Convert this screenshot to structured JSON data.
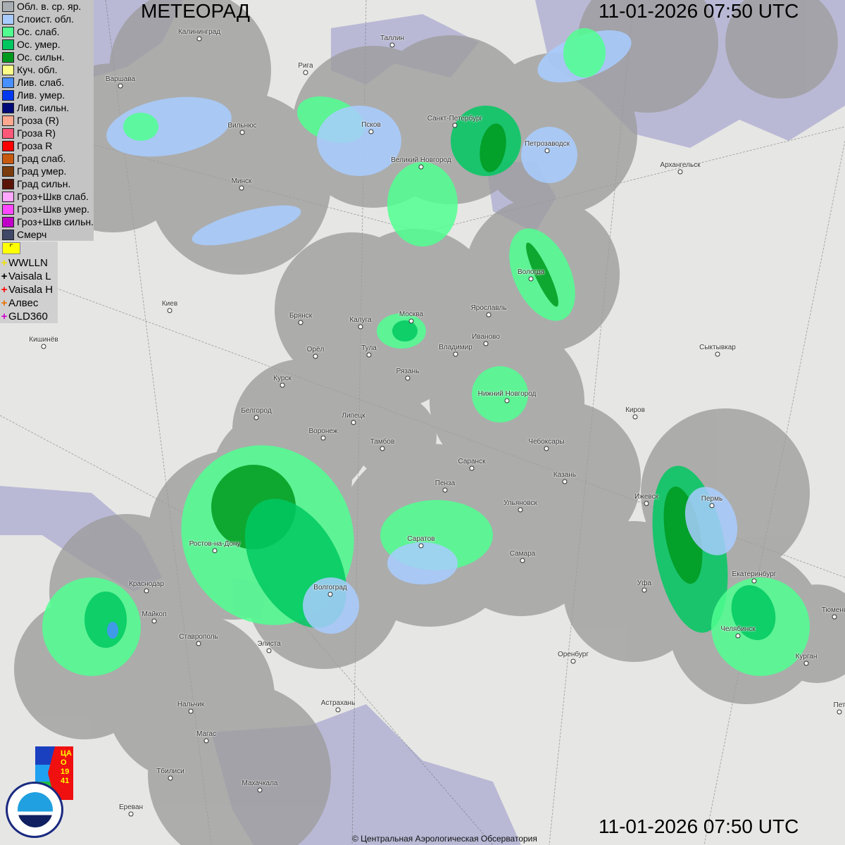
{
  "header": {
    "title": "МЕТЕОРАД",
    "timestamp": "11-01-2026  07:50 UTC"
  },
  "footer": {
    "timestamp": "11-01-2026  07:50 UTC",
    "copyright": "© Центральная Аэрологическая Обсерватория"
  },
  "legend": [
    {
      "label": "Обл. в. ср. яр.",
      "color": "#a8aeb2"
    },
    {
      "label": "Слоист. обл.",
      "color": "#a8ccff"
    },
    {
      "label": "Ос. слаб.",
      "color": "#50ff90"
    },
    {
      "label": "Ос. умер.",
      "color": "#00c860"
    },
    {
      "label": "Ос. сильн.",
      "color": "#009a1e"
    },
    {
      "label": "Куч. обл.",
      "color": "#ffff88"
    },
    {
      "label": "Лив. слаб.",
      "color": "#4890ff"
    },
    {
      "label": "Лив. умер.",
      "color": "#0038f0"
    },
    {
      "label": "Лив. сильн.",
      "color": "#000a78"
    },
    {
      "label": "Гроза (R)",
      "color": "#ffa890"
    },
    {
      "label": "Гроза R)",
      "color": "#ff5878"
    },
    {
      "label": "Гроза R",
      "color": "#ff0000"
    },
    {
      "label": "Град слаб.",
      "color": "#c85a10"
    },
    {
      "label": "Град умер.",
      "color": "#7a3c0c"
    },
    {
      "label": "Град сильн.",
      "color": "#5a1408"
    },
    {
      "label": "Гроз+Шкв слаб.",
      "color": "#ffa8ff"
    },
    {
      "label": "Гроз+Шкв умер.",
      "color": "#ff48ff"
    },
    {
      "label": "Гроз+Шкв сильн.",
      "color": "#c000c8"
    },
    {
      "label": "Смерч",
      "color": "#404868"
    }
  ],
  "lightning_networks": [
    {
      "label": "WWLLN",
      "color": "#f0e000"
    },
    {
      "label": "Vaisala L",
      "color": "#000000"
    },
    {
      "label": "Vaisala H",
      "color": "#ff0000"
    },
    {
      "label": "Алвес",
      "color": "#e87000"
    },
    {
      "label": "GLD360",
      "color": "#d000d0"
    }
  ],
  "logos": {
    "cao": "ЦАО 1941",
    "roshydromet": "РОСГИДРОМЕТ ROSHYDROMET"
  },
  "cities": [
    "Калининград",
    "Таллин",
    "Рига",
    "Варшава",
    "Санкт-Петербург",
    "Псков",
    "Вильнюс",
    "Петрозаводск",
    "Великий Новгород",
    "Архангельск",
    "Минск",
    "Вологда",
    "Киев",
    "Ярославль",
    "Москва",
    "Брянск",
    "Калуга",
    "Иваново",
    "Кишинёв",
    "Сыктывкар",
    "Владимир",
    "Орёл",
    "Тула",
    "Рязань",
    "Курск",
    "Нижний Новгород",
    "Белгород",
    "Киров",
    "Липецк",
    "Воронеж",
    "Тамбов",
    "Чебоксары",
    "Саранск",
    "Казань",
    "Пенза",
    "Ижевск",
    "Ульяновск",
    "Пермь",
    "Саратов",
    "Ростов-на-Дону",
    "Самара",
    "Краснодар",
    "Екатеринбург",
    "Уфа",
    "Волгоград",
    "Майкоп",
    "Тюмень",
    "Челябинск",
    "Ставрополь",
    "Элиста",
    "Курган",
    "Оренбург",
    "Нальчик",
    "Астрахань",
    "Пет",
    "Магас",
    "Тбилиси",
    "Махачкала",
    "Ереван"
  ]
}
